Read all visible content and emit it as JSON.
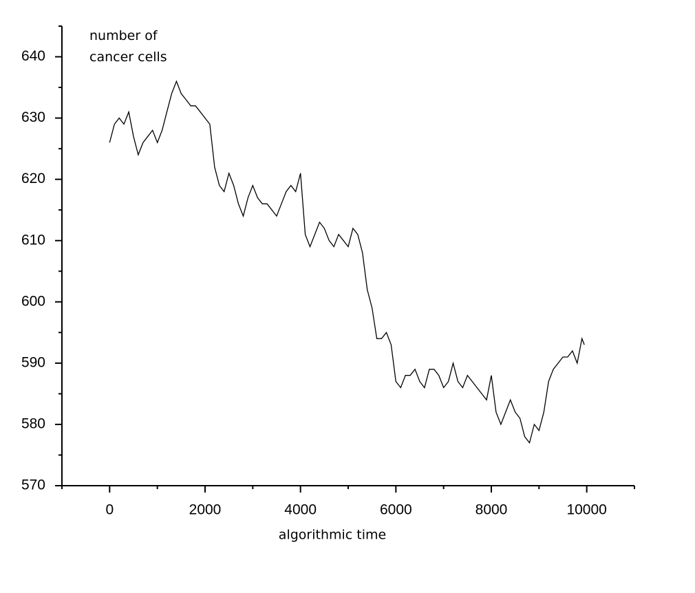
{
  "chart_data": {
    "type": "line",
    "xlabel": "algorithmic time",
    "ylabel": "number of cancer cells",
    "xlim": [
      -1000,
      11000
    ],
    "ylim": [
      570,
      645
    ],
    "xticks": [
      0,
      2000,
      4000,
      6000,
      8000,
      10000
    ],
    "yticks": [
      570,
      580,
      590,
      600,
      610,
      620,
      630,
      640
    ],
    "xminorticks": [
      -1000,
      1000,
      3000,
      5000,
      7000,
      9000,
      11000
    ],
    "yminorticks": [
      575,
      585,
      595,
      605,
      615,
      625,
      635,
      645
    ],
    "series": [
      {
        "color": "#000000",
        "x": [
          0,
          100,
          200,
          300,
          400,
          500,
          600,
          700,
          800,
          900,
          1000,
          1100,
          1200,
          1300,
          1400,
          1500,
          1600,
          1700,
          1800,
          1900,
          2000,
          2100,
          2200,
          2300,
          2400,
          2500,
          2600,
          2700,
          2800,
          2900,
          3000,
          3100,
          3200,
          3300,
          3400,
          3500,
          3600,
          3700,
          3800,
          3900,
          4000,
          4100,
          4200,
          4300,
          4400,
          4500,
          4600,
          4700,
          4800,
          4900,
          5000,
          5100,
          5200,
          5300,
          5400,
          5500,
          5600,
          5700,
          5800,
          5900,
          6000,
          6100,
          6200,
          6300,
          6400,
          6500,
          6600,
          6700,
          6800,
          6900,
          7000,
          7100,
          7200,
          7300,
          7400,
          7500,
          7600,
          7700,
          7800,
          7900,
          8000,
          8100,
          8200,
          8300,
          8400,
          8500,
          8600,
          8700,
          8800,
          8900,
          9000,
          9100,
          9200,
          9300,
          9400,
          9500,
          9600,
          9700,
          9800,
          9900,
          9950
        ],
        "values": [
          626,
          629,
          630,
          629,
          631,
          627,
          624,
          626,
          627,
          628,
          626,
          628,
          631,
          634,
          636,
          634,
          633,
          632,
          632,
          631,
          630,
          629,
          622,
          619,
          618,
          621,
          619,
          616,
          614,
          617,
          619,
          617,
          616,
          616,
          615,
          614,
          616,
          618,
          619,
          618,
          621,
          611,
          609,
          611,
          613,
          612,
          610,
          609,
          611,
          610,
          609,
          612,
          611,
          608,
          602,
          599,
          594,
          594,
          595,
          593,
          587,
          586,
          588,
          588,
          589,
          587,
          586,
          589,
          589,
          588,
          586,
          587,
          590,
          587,
          586,
          588,
          587,
          586,
          585,
          584,
          588,
          582,
          580,
          582,
          584,
          582,
          581,
          578,
          577,
          580,
          579,
          582,
          587,
          589,
          590,
          591,
          591,
          592,
          590,
          594,
          593
        ]
      }
    ]
  }
}
